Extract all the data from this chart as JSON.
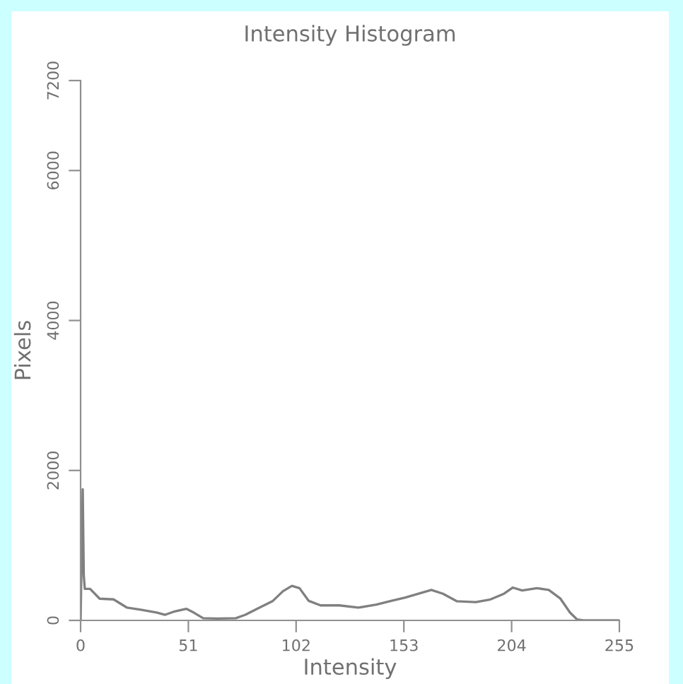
{
  "chart_data": {
    "type": "line",
    "title": "Intensity Histogram",
    "xlabel": "Intensity",
    "ylabel": "Pixels",
    "x": [
      0,
      1,
      1.5,
      2,
      4.5,
      9,
      15.6,
      22,
      29,
      36,
      40,
      44.5,
      50,
      53.5,
      58,
      64.6,
      73.5,
      78,
      84.6,
      91,
      95.8,
      100,
      103.6,
      108,
      113.6,
      122.5,
      131.4,
      140,
      147,
      153.7,
      160,
      166,
      171.5,
      178,
      187,
      194,
      200.4,
      204.5,
      209,
      216,
      221.6,
      227,
      231.6,
      235,
      238,
      255
    ],
    "series": [
      {
        "color": "#808080",
        "values": [
          0,
          1750,
          600,
          420,
          420,
          290,
          280,
          170,
          140,
          105,
          75,
          120,
          155,
          105,
          30,
          25,
          30,
          75,
          170,
          260,
          390,
          460,
          430,
          260,
          200,
          200,
          170,
          210,
          260,
          305,
          356,
          406,
          356,
          256,
          244,
          280,
          356,
          438,
          400,
          430,
          406,
          294,
          106,
          12,
          0,
          0
        ]
      }
    ],
    "xlim": [
      0,
      255
    ],
    "xticks": [
      0,
      51,
      102,
      153,
      204,
      255
    ],
    "ylim": [
      0,
      7200
    ],
    "yticks": [
      0,
      2000,
      4000,
      6000,
      7200
    ],
    "grid": false,
    "legend": false
  }
}
